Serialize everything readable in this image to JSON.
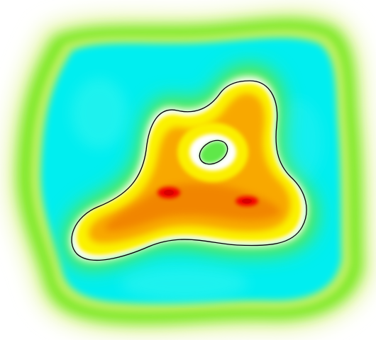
{
  "image": {
    "description_visible_text": "",
    "colors": {
      "background": "#ffffff",
      "outer_ring_light": "#e8f6b0",
      "outer_ring": "#78e818",
      "level_low": "#00f0f0",
      "level_mid": "#f8f800",
      "level_high": "#f8a000",
      "level_peak": "#f00000",
      "contour_line": "#000000"
    },
    "scale": [
      "cyan",
      "green",
      "white",
      "yellow",
      "orange",
      "red"
    ],
    "features": {
      "contour": "closed-black-outline",
      "hole": "central-ring",
      "peaks": 2
    }
  }
}
